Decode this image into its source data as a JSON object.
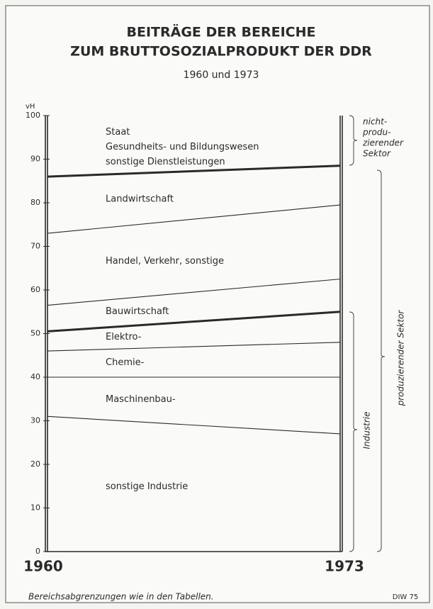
{
  "chart_data": {
    "type": "stacked_lines",
    "title": [
      "BEITRÄGE DER BEREICHE",
      "ZUM BRUTTOSOZIALPRODUKT DER DDR"
    ],
    "subtitle": "1960 und 1973",
    "y_unit": "vH",
    "categories": [
      "1960",
      "1973"
    ],
    "ylim": [
      0,
      100
    ],
    "yticks": [
      0,
      10,
      20,
      30,
      40,
      50,
      60,
      70,
      80,
      90,
      100
    ],
    "color": "#2a2a2a",
    "series": [
      {
        "name": "sonstige Industrie",
        "values": [
          31,
          27
        ]
      },
      {
        "name": "Maschinenbau-",
        "values": [
          9,
          13
        ]
      },
      {
        "name": "Chemie-",
        "values": [
          6,
          8
        ]
      },
      {
        "name": "Elektro-",
        "values": [
          4.5,
          7
        ],
        "thick_top": true
      },
      {
        "name": "Bauwirtschaft",
        "values": [
          6,
          7.5
        ]
      },
      {
        "name": "Handel, Verkehr, sonstige",
        "values": [
          16.5,
          17
        ]
      },
      {
        "name": "Landwirtschaft",
        "values": [
          13,
          9
        ],
        "thick_top": true
      },
      {
        "name": [
          "Staat",
          "Gesundheits- und Bildungswesen",
          "sonstige Dienstleistungen"
        ],
        "values": [
          14,
          11.5
        ]
      }
    ],
    "brackets": {
      "nonproductive": [
        "nicht-",
        "produ-",
        "zierender",
        "Sektor"
      ],
      "productive": "produzierender Sektor",
      "industry": "Industrie"
    },
    "footnote": "Bereichsabgrenzungen wie in den Tabellen.",
    "source": "DIW 75"
  }
}
